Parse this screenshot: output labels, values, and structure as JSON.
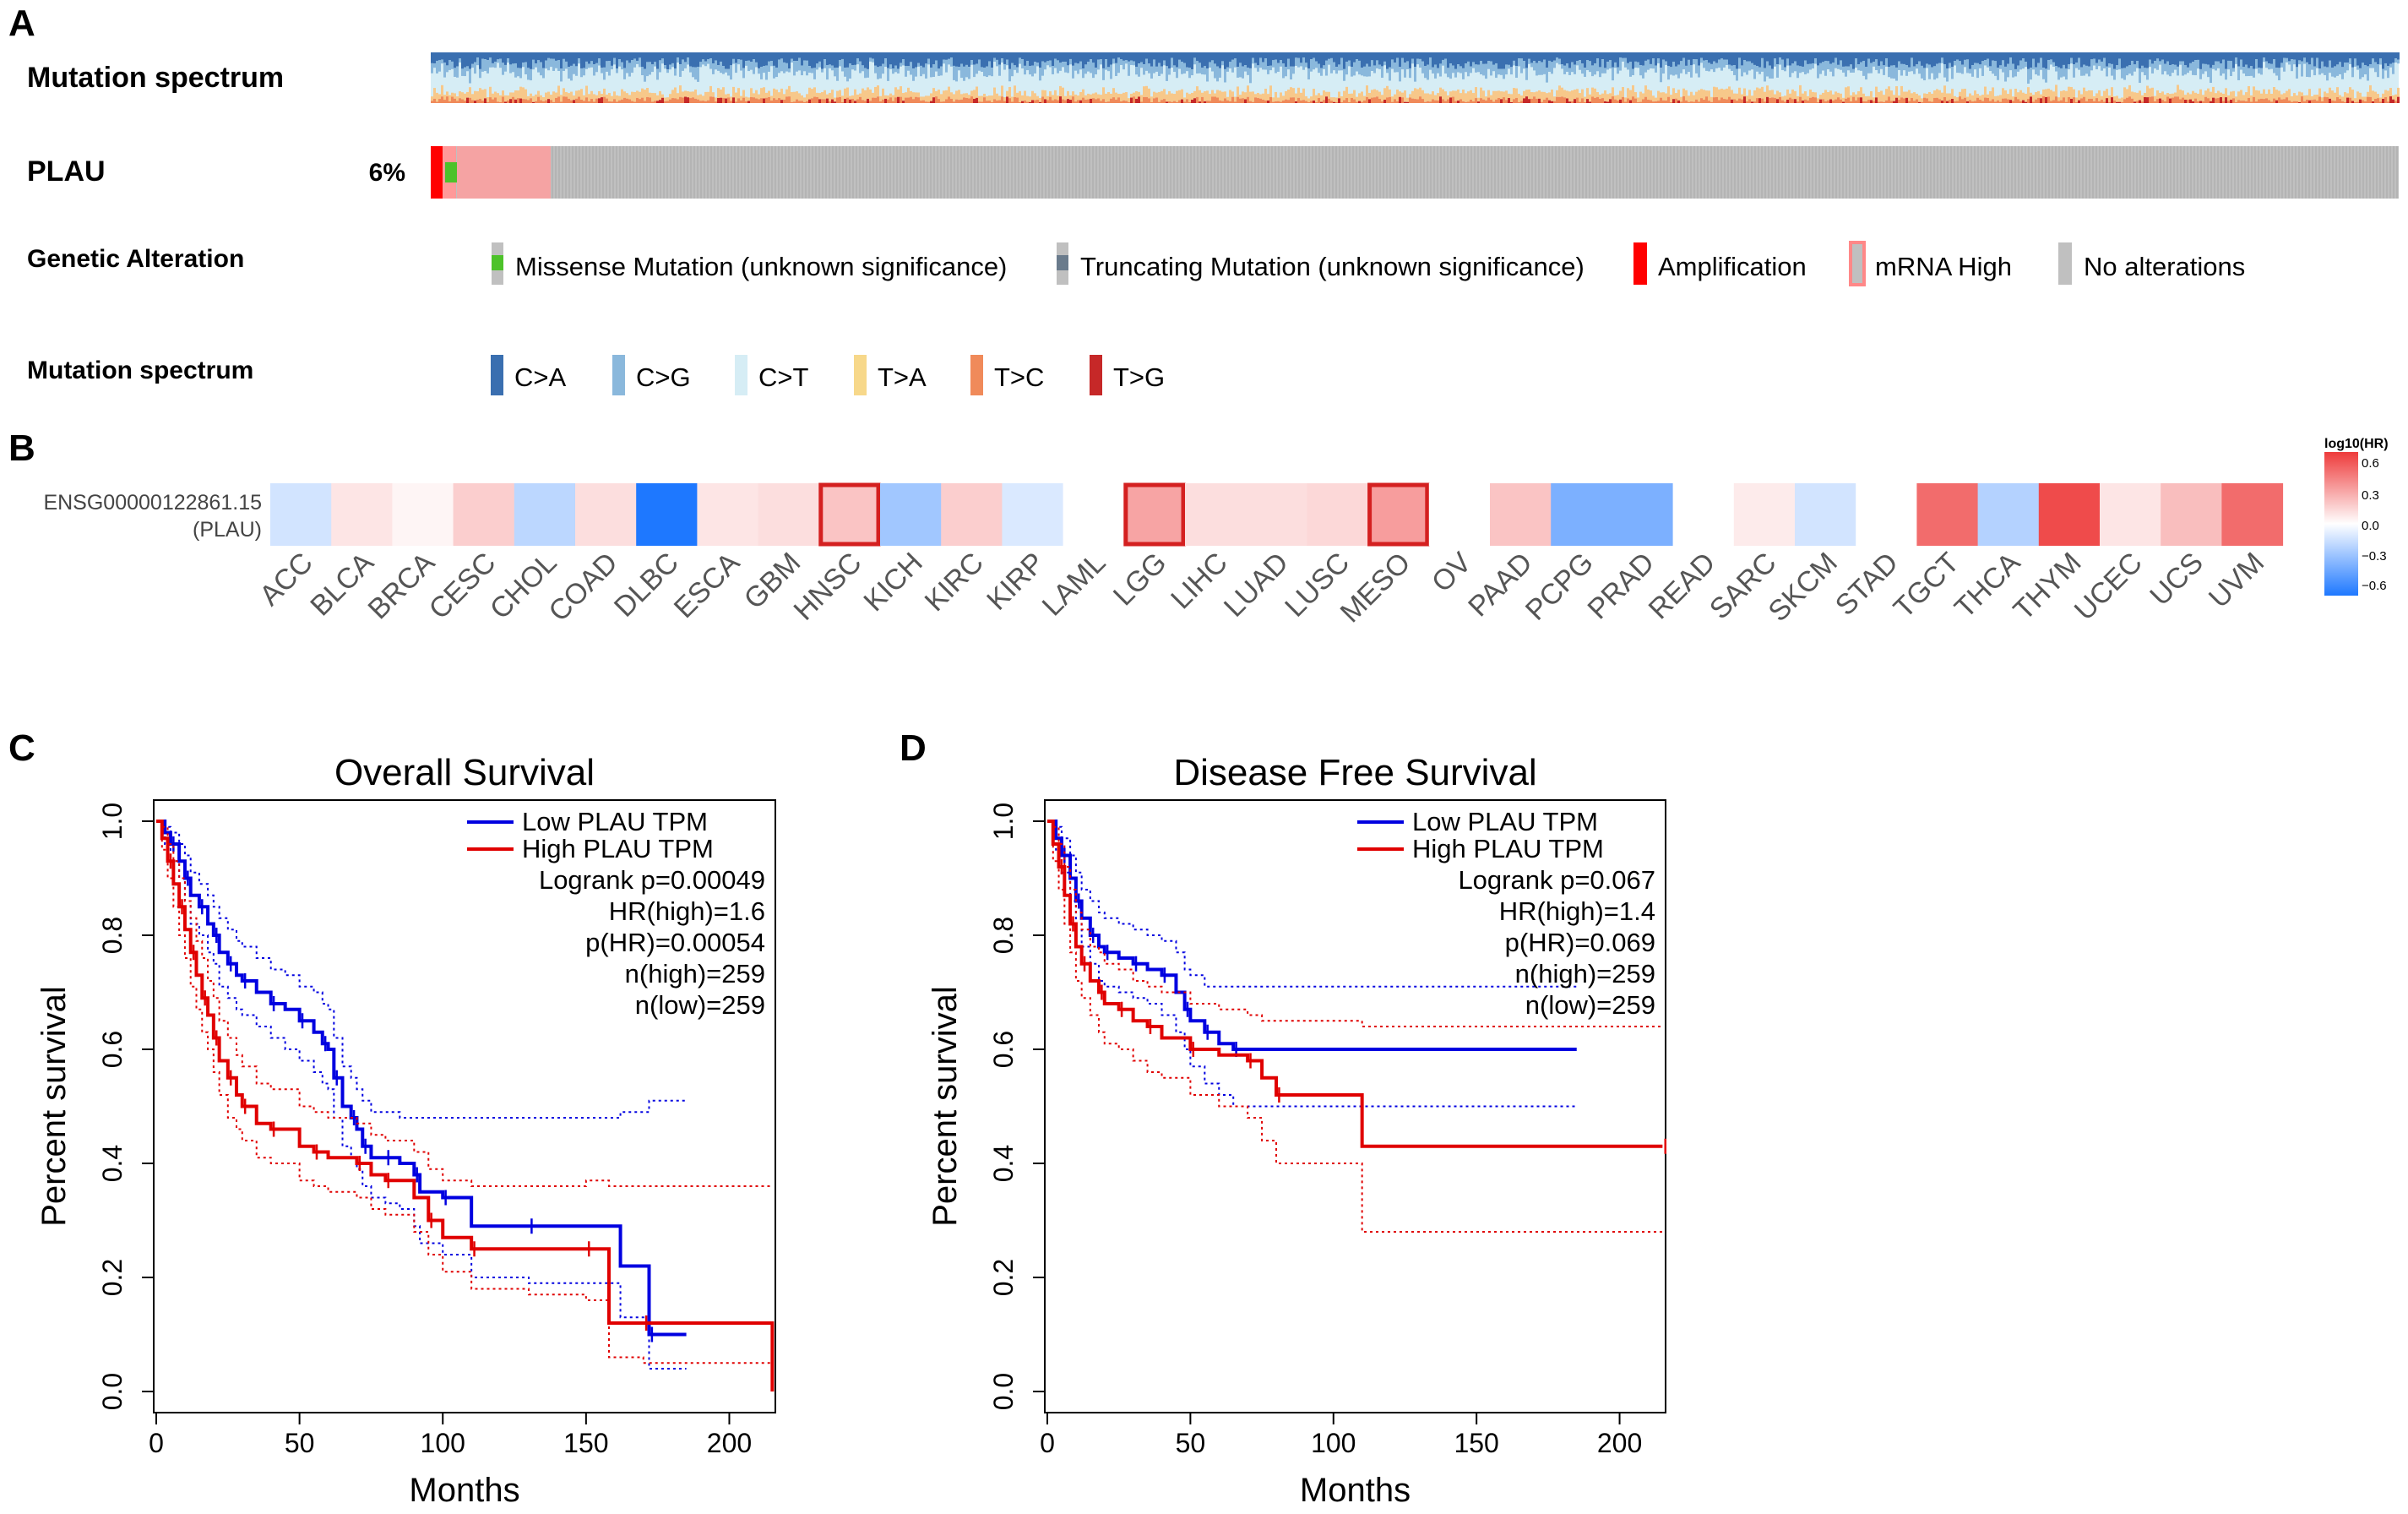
{
  "panelA": {
    "letter": "A",
    "row1_label": "Mutation spectrum",
    "row2_label": "PLAU",
    "row2_percent": "6%",
    "row3_label": "Genetic Alteration",
    "row4_label": "Mutation spectrum",
    "alteration_legend": [
      {
        "label": "Missense Mutation (unknown significance)",
        "color": "#4dc22a"
      },
      {
        "label": "Truncating Mutation (unknown significance)",
        "color": "#6a7b8c"
      },
      {
        "label": "Amplification",
        "color": "#ff0000"
      },
      {
        "label": "mRNA High",
        "color": "#ff9999"
      },
      {
        "label": "No alterations",
        "color": "#c0c0c0"
      }
    ],
    "spectrum_legend": [
      {
        "label": "C>A",
        "color": "#3a6fb0"
      },
      {
        "label": "C>G",
        "color": "#8ab8dc"
      },
      {
        "label": "C>T",
        "color": "#d6edf5"
      },
      {
        "label": "T>A",
        "color": "#f7d88a"
      },
      {
        "label": "T>C",
        "color": "#f08a5a"
      },
      {
        "label": "T>G",
        "color": "#c62828"
      }
    ]
  },
  "panelB": {
    "letter": "B",
    "gene_line1": "ENSG00000122861.15",
    "gene_line2": "(PLAU)",
    "colorbar_title": "log10(HR)",
    "colorbar_ticks": [
      "0.6",
      "0.3",
      "0.0",
      "−0.3",
      "−0.6"
    ],
    "cancers": [
      "ACC",
      "BLCA",
      "BRCA",
      "CESC",
      "CHOL",
      "COAD",
      "DLBC",
      "ESCA",
      "GBM",
      "HNSC",
      "KICH",
      "KIRC",
      "KIRP",
      "LAML",
      "LGG",
      "LIHC",
      "LUAD",
      "LUSC",
      "MESO",
      "OV",
      "PAAD",
      "PCPG",
      "PRAD",
      "READ",
      "SARC",
      "SKCM",
      "STAD",
      "TGCT",
      "THCA",
      "THYM",
      "UCEC",
      "UCS",
      "UVM"
    ],
    "log10_hr": [
      -0.12,
      0.08,
      0.03,
      0.15,
      -0.18,
      0.1,
      -0.6,
      0.08,
      0.1,
      0.18,
      -0.25,
      0.15,
      -0.1,
      0.0,
      0.28,
      0.1,
      0.1,
      0.12,
      0.3,
      0.0,
      0.18,
      -0.35,
      -0.35,
      0.0,
      0.06,
      -0.12,
      null,
      0.45,
      -0.2,
      0.55,
      0.08,
      0.2,
      0.45
    ],
    "significant": [
      "HNSC",
      "LGG",
      "MESO"
    ]
  },
  "chart_data": [
    {
      "type": "line",
      "panel": "C",
      "title": "Overall Survival",
      "xlabel": "Months",
      "ylabel": "Percent survival",
      "xlim": [
        0,
        220
      ],
      "ylim": [
        0,
        1
      ],
      "xticks": [
        "0",
        "50",
        "100",
        "150",
        "200"
      ],
      "yticks": [
        "0.0",
        "0.2",
        "0.4",
        "0.6",
        "0.8",
        "1.0"
      ],
      "legend": [
        "Low PLAU TPM",
        "High PLAU TPM"
      ],
      "stats": [
        "Logrank p=0.00049",
        "HR(high)=1.6",
        "p(HR)=0.00054",
        "n(high)=259",
        "n(low)=259"
      ],
      "series": [
        {
          "name": "Low PLAU TPM",
          "color": "#0000e0",
          "x": [
            0,
            3,
            5,
            8,
            10,
            12,
            15,
            18,
            20,
            22,
            25,
            28,
            30,
            35,
            40,
            45,
            50,
            55,
            58,
            60,
            62,
            65,
            68,
            70,
            72,
            75,
            80,
            85,
            90,
            92,
            100,
            110,
            130,
            162,
            172,
            185
          ],
          "y": [
            1.0,
            0.98,
            0.96,
            0.93,
            0.9,
            0.87,
            0.85,
            0.82,
            0.8,
            0.77,
            0.75,
            0.73,
            0.72,
            0.7,
            0.68,
            0.67,
            0.65,
            0.63,
            0.61,
            0.6,
            0.55,
            0.5,
            0.48,
            0.46,
            0.43,
            0.41,
            0.41,
            0.4,
            0.38,
            0.35,
            0.34,
            0.29,
            0.29,
            0.22,
            0.1,
            0.1
          ],
          "ci_upper": [
            1.0,
            0.99,
            0.98,
            0.96,
            0.94,
            0.91,
            0.89,
            0.87,
            0.85,
            0.83,
            0.81,
            0.79,
            0.78,
            0.76,
            0.74,
            0.73,
            0.71,
            0.7,
            0.68,
            0.67,
            0.62,
            0.57,
            0.55,
            0.53,
            0.51,
            0.49,
            0.49,
            0.48,
            0.48,
            0.48,
            0.48,
            0.48,
            0.48,
            0.49,
            0.51,
            0.51
          ],
          "ci_lower": [
            1.0,
            0.96,
            0.93,
            0.9,
            0.86,
            0.82,
            0.8,
            0.77,
            0.75,
            0.71,
            0.69,
            0.67,
            0.66,
            0.64,
            0.62,
            0.6,
            0.58,
            0.56,
            0.54,
            0.53,
            0.48,
            0.43,
            0.41,
            0.39,
            0.36,
            0.34,
            0.33,
            0.32,
            0.29,
            0.26,
            0.24,
            0.2,
            0.19,
            0.13,
            0.04,
            0.04
          ]
        },
        {
          "name": "High PLAU TPM",
          "color": "#e00000",
          "x": [
            0,
            2,
            4,
            6,
            8,
            10,
            12,
            14,
            16,
            18,
            20,
            22,
            25,
            28,
            30,
            35,
            40,
            50,
            55,
            60,
            70,
            75,
            80,
            90,
            95,
            100,
            110,
            130,
            150,
            158,
            170,
            215
          ],
          "y": [
            1.0,
            0.97,
            0.93,
            0.89,
            0.85,
            0.81,
            0.77,
            0.73,
            0.69,
            0.66,
            0.62,
            0.58,
            0.55,
            0.52,
            0.5,
            0.47,
            0.46,
            0.43,
            0.42,
            0.41,
            0.4,
            0.38,
            0.37,
            0.34,
            0.3,
            0.27,
            0.25,
            0.25,
            0.25,
            0.12,
            0.12,
            0.0
          ],
          "ci_upper": [
            1.0,
            0.99,
            0.96,
            0.93,
            0.9,
            0.86,
            0.83,
            0.79,
            0.76,
            0.72,
            0.69,
            0.65,
            0.62,
            0.59,
            0.57,
            0.54,
            0.53,
            0.5,
            0.49,
            0.48,
            0.47,
            0.45,
            0.44,
            0.42,
            0.39,
            0.37,
            0.36,
            0.36,
            0.37,
            0.36,
            0.36,
            0.36
          ],
          "ci_lower": [
            1.0,
            0.95,
            0.9,
            0.85,
            0.8,
            0.76,
            0.71,
            0.67,
            0.63,
            0.6,
            0.56,
            0.52,
            0.48,
            0.46,
            0.44,
            0.41,
            0.4,
            0.37,
            0.36,
            0.35,
            0.34,
            0.32,
            0.31,
            0.28,
            0.24,
            0.21,
            0.18,
            0.17,
            0.16,
            0.06,
            0.05,
            0.0
          ]
        }
      ]
    },
    {
      "type": "line",
      "panel": "D",
      "title": "Disease Free Survival",
      "xlabel": "Months",
      "ylabel": "Percent survival",
      "xlim": [
        0,
        220
      ],
      "ylim": [
        0,
        1
      ],
      "xticks": [
        "0",
        "50",
        "100",
        "150",
        "200"
      ],
      "yticks": [
        "0.0",
        "0.2",
        "0.4",
        "0.6",
        "0.8",
        "1.0"
      ],
      "legend": [
        "Low PLAU TPM",
        "High PLAU TPM"
      ],
      "stats": [
        "Logrank p=0.067",
        "HR(high)=1.4",
        "p(HR)=0.069",
        "n(high)=259",
        "n(low)=259"
      ],
      "series": [
        {
          "name": "Low PLAU TPM",
          "color": "#0000e0",
          "x": [
            0,
            3,
            5,
            8,
            10,
            12,
            15,
            18,
            20,
            25,
            30,
            35,
            40,
            45,
            48,
            50,
            55,
            60,
            65,
            185
          ],
          "y": [
            1.0,
            0.97,
            0.94,
            0.9,
            0.86,
            0.83,
            0.8,
            0.78,
            0.77,
            0.76,
            0.75,
            0.74,
            0.73,
            0.7,
            0.67,
            0.65,
            0.63,
            0.61,
            0.6,
            0.6
          ],
          "ci_upper": [
            1.0,
            0.99,
            0.97,
            0.94,
            0.91,
            0.88,
            0.86,
            0.84,
            0.83,
            0.82,
            0.81,
            0.8,
            0.79,
            0.77,
            0.74,
            0.73,
            0.71,
            0.71,
            0.71,
            0.71
          ],
          "ci_lower": [
            1.0,
            0.95,
            0.91,
            0.86,
            0.82,
            0.78,
            0.75,
            0.72,
            0.71,
            0.7,
            0.69,
            0.68,
            0.66,
            0.63,
            0.6,
            0.57,
            0.54,
            0.52,
            0.5,
            0.5
          ]
        },
        {
          "name": "High PLAU TPM",
          "color": "#e00000",
          "x": [
            0,
            2,
            4,
            6,
            8,
            10,
            12,
            15,
            18,
            20,
            25,
            30,
            35,
            40,
            50,
            60,
            70,
            75,
            80,
            110,
            215
          ],
          "y": [
            1.0,
            0.96,
            0.92,
            0.87,
            0.82,
            0.78,
            0.75,
            0.72,
            0.7,
            0.68,
            0.67,
            0.65,
            0.64,
            0.62,
            0.6,
            0.59,
            0.58,
            0.55,
            0.52,
            0.43,
            0.43
          ],
          "ci_upper": [
            1.0,
            0.99,
            0.96,
            0.92,
            0.88,
            0.84,
            0.81,
            0.78,
            0.77,
            0.75,
            0.74,
            0.72,
            0.71,
            0.7,
            0.68,
            0.67,
            0.66,
            0.65,
            0.65,
            0.64,
            0.64
          ],
          "ci_lower": [
            1.0,
            0.93,
            0.88,
            0.82,
            0.77,
            0.72,
            0.69,
            0.66,
            0.63,
            0.61,
            0.6,
            0.58,
            0.56,
            0.55,
            0.52,
            0.5,
            0.48,
            0.44,
            0.4,
            0.28,
            0.28
          ]
        }
      ]
    }
  ]
}
